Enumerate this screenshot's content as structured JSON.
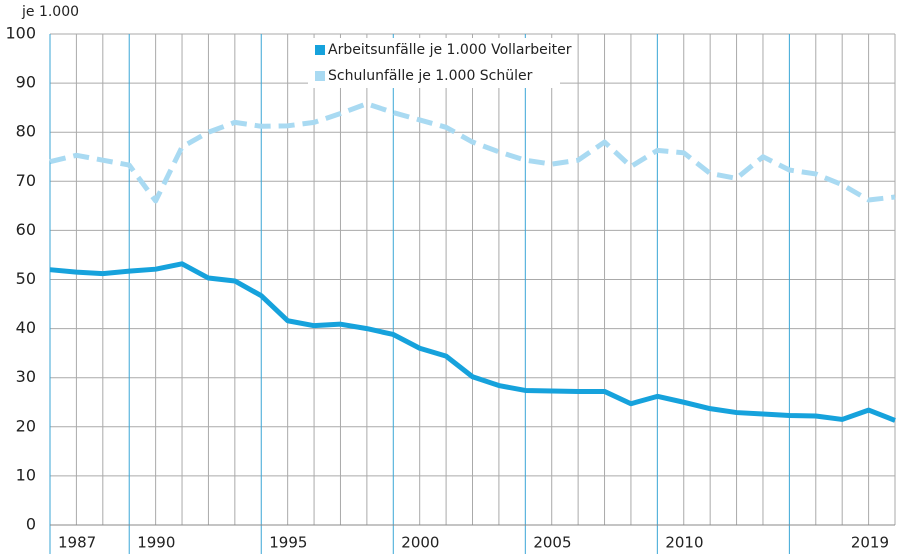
{
  "chart_data": {
    "type": "line",
    "y_label": "je 1.000",
    "x": [
      1987,
      1988,
      1989,
      1990,
      1991,
      1992,
      1993,
      1994,
      1995,
      1996,
      1997,
      1998,
      1999,
      2000,
      2001,
      2002,
      2003,
      2004,
      2005,
      2006,
      2007,
      2008,
      2009,
      2010,
      2011,
      2012,
      2013,
      2014,
      2015,
      2016,
      2017,
      2018,
      2019
    ],
    "series": [
      {
        "name": "Arbeitsunfälle je 1.000 Vollarbeiter",
        "color": "#16a2dc",
        "dash": false,
        "values": [
          52,
          51.5,
          51.2,
          51.7,
          52.1,
          53.2,
          50.3,
          49.7,
          46.7,
          41.6,
          40.6,
          40.9,
          40,
          38.8,
          36,
          34.4,
          30.2,
          28.4,
          27.4,
          27.3,
          27.2,
          27.2,
          24.7,
          26.2,
          25,
          23.7,
          22.9,
          22.6,
          22.3,
          22.2,
          21.5,
          23.4,
          21.3
        ]
      },
      {
        "name": "Schulunfälle je 1.000 Schüler",
        "color": "#a9daf2",
        "dash": true,
        "values": [
          74,
          75.3,
          74.3,
          73.3,
          66,
          77,
          80,
          82,
          81.2,
          81.3,
          82,
          83.8,
          85.8,
          84,
          82.5,
          81,
          78,
          76,
          74.3,
          73.5,
          74.3,
          78,
          73,
          76.3,
          75.8,
          71.6,
          70.6,
          75,
          72.3,
          71.5,
          69.3,
          66.2,
          66.8
        ]
      }
    ],
    "xlim": [
      1987,
      2019
    ],
    "xticks": [
      1987,
      1990,
      1995,
      2000,
      2005,
      2010,
      2019
    ],
    "ylim": [
      0,
      100
    ],
    "yticks": [
      0,
      10,
      20,
      30,
      40,
      50,
      60,
      70,
      80,
      90,
      100
    ],
    "grid": true,
    "legend": "top"
  }
}
